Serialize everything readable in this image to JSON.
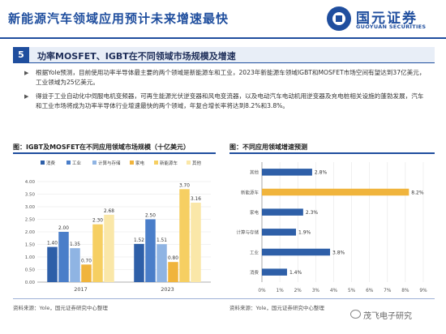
{
  "header": {
    "title": "新能源汽车领域应用预计未来增速最快",
    "logo_cn": "国元证券",
    "logo_en": "GUOYUAN SECURITIES"
  },
  "section": {
    "number": "5",
    "title": "功率MOSFET、IGBT在不同领域市场规模及增速"
  },
  "bullets": [
    "根据Yole预测，目前使用功率半导体最主要的两个领域是新能源车和工业，2023年新能源车领域IGBT和MOSFET市场空间有望达到37亿美元，工业领域为25亿美元。",
    "得益于工业自动化中伺服电机变频器，可再生能源光伏逆变器和风电变流器，以及电动汽车电动机用逆变器及充电桩相关设施的蓬勃发展，汽车和工业市场将成为功率半导体行业增速最快的两个领域，年复合增长率将达到8.2%和3.8%。"
  ],
  "left_chart": {
    "title": "图：IGBT及MOSFET在不同应用领域市场规模（十亿美元）",
    "source": "资料来源：Yole，国元证券研究中心整理"
  },
  "right_chart": {
    "title": "图：不同应用领域增速预测",
    "source": "资料来源：Yole，国元证券研究中心整理"
  },
  "watermark": "茂飞电子研究",
  "chart_data": [
    {
      "type": "bar",
      "categories": [
        "2017",
        "2023"
      ],
      "series": [
        {
          "name": "消费",
          "values": [
            1.4,
            1.52
          ],
          "labels": [
            "1.40",
            "1.52"
          ]
        },
        {
          "name": "工业",
          "values": [
            2.0,
            2.5
          ],
          "labels": [
            "2.00",
            "2.50"
          ]
        },
        {
          "name": "计算与存储",
          "values": [
            1.35,
            1.51
          ],
          "labels": [
            "1.35",
            "1.51"
          ]
        },
        {
          "name": "家电",
          "values": [
            0.7,
            0.8
          ],
          "labels": [
            "0.70",
            "0.80"
          ]
        },
        {
          "name": "新能源车",
          "values": [
            2.3,
            3.7
          ],
          "labels": [
            "2.30",
            "3.70"
          ]
        },
        {
          "name": "其他",
          "values": [
            2.68,
            3.16
          ],
          "labels": [
            "2.68",
            "3.16"
          ]
        }
      ],
      "colors": [
        "#2e5fa8",
        "#4a7ec9",
        "#8fb4e3",
        "#f0b43c",
        "#f6cf62",
        "#fae7a8"
      ],
      "ylim": [
        0,
        4
      ],
      "yticks": [
        "0.00",
        "0.50",
        "1.00",
        "1.50",
        "2.00",
        "2.50",
        "3.00",
        "3.50",
        "4.00"
      ],
      "legend": "top"
    },
    {
      "type": "bar",
      "orientation": "horizontal",
      "categories": [
        "其他",
        "新能源车",
        "家电",
        "计算与存储",
        "工业",
        "消费"
      ],
      "values": [
        2.8,
        8.2,
        2.3,
        1.9,
        3.8,
        1.4
      ],
      "labels": [
        "2.8%",
        "8.2%",
        "2.3%",
        "1.9%",
        "3.8%",
        "1.4%"
      ],
      "colors": [
        "#2e5fa8",
        "#f0b43c",
        "#2e5fa8",
        "#2e5fa8",
        "#2e5fa8",
        "#2e5fa8"
      ],
      "xlim": [
        0,
        9
      ],
      "xticks": [
        "0%",
        "1%",
        "2%",
        "3%",
        "4%",
        "5%",
        "6%",
        "7%",
        "8%",
        "9%"
      ]
    }
  ]
}
